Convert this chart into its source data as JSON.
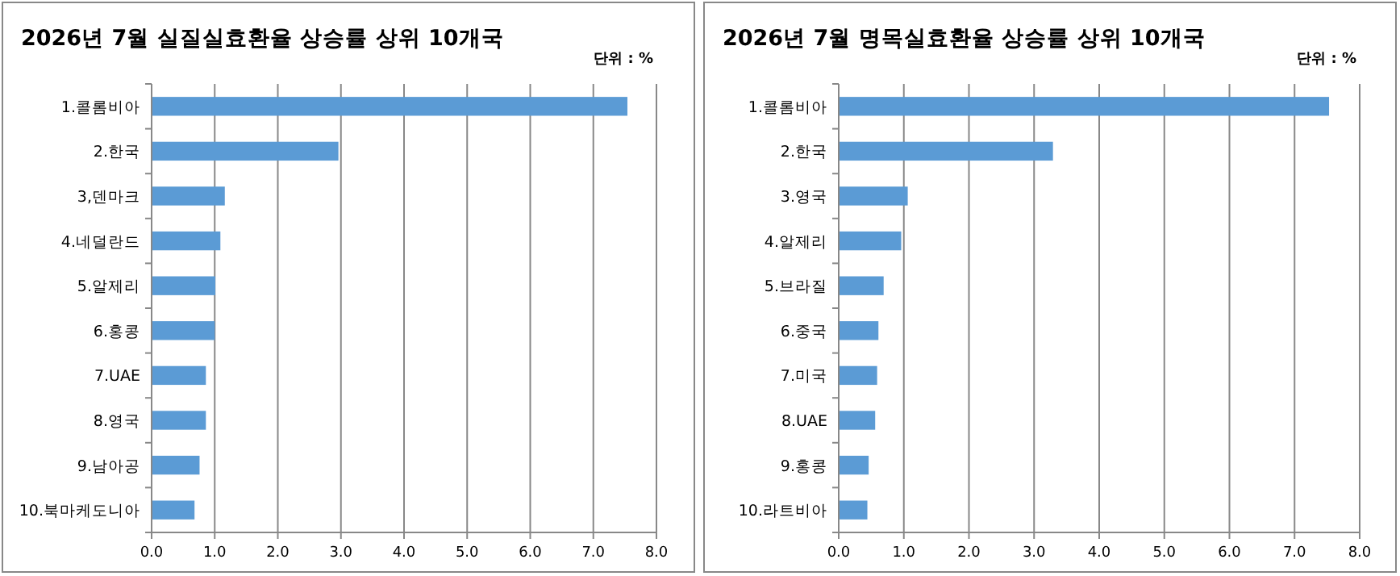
{
  "chart_data": [
    {
      "type": "bar",
      "orientation": "horizontal",
      "title": "2026년 7월 실질실효환율 상승률 상위 10개국",
      "annotations": [
        "단위 : %"
      ],
      "categories": [
        "1.콜롬비아",
        "2.한국",
        "3,덴마크",
        "4.네덜란드",
        "5.알제리",
        "6.홍콩",
        "7.UAE",
        "8.영국",
        "9.남아공",
        "10.북마케도니아"
      ],
      "values": [
        7.54,
        2.96,
        1.16,
        1.09,
        1.01,
        1.0,
        0.86,
        0.86,
        0.76,
        0.68
      ],
      "color": "#5b9bd5",
      "xlim": [
        0,
        8
      ],
      "xticks": [
        {
          "value": 0,
          "label": "0.0"
        },
        {
          "value": 1,
          "label": "1.0"
        },
        {
          "value": 2,
          "label": "2.0"
        },
        {
          "value": 3,
          "label": "3.0"
        },
        {
          "value": 4,
          "label": "4.0"
        },
        {
          "value": 5,
          "label": "5.0"
        },
        {
          "value": 6,
          "label": "6.0"
        },
        {
          "value": 7,
          "label": "7.0"
        },
        {
          "value": 8,
          "label": "8.0"
        }
      ],
      "grid": "x"
    },
    {
      "type": "bar",
      "orientation": "horizontal",
      "title": "2026년 7월 명목실효환율 상승률 상위 10개국",
      "annotations": [
        "단위 : %"
      ],
      "categories": [
        "1.콜롬비아",
        "2.한국",
        "3.영국",
        "4.알제리",
        "5.브라질",
        "6.중국",
        "7.미국",
        "8.UAE",
        "9.홍콩",
        "10.라트비아"
      ],
      "values": [
        7.53,
        3.29,
        1.06,
        0.96,
        0.69,
        0.61,
        0.59,
        0.56,
        0.46,
        0.44
      ],
      "color": "#5b9bd5",
      "xlim": [
        0,
        8
      ],
      "xticks": [
        {
          "value": 0,
          "label": "0.0"
        },
        {
          "value": 1,
          "label": "1.0"
        },
        {
          "value": 2,
          "label": "2.0"
        },
        {
          "value": 3,
          "label": "3.0"
        },
        {
          "value": 4,
          "label": "4.0"
        },
        {
          "value": 5,
          "label": "5.0"
        },
        {
          "value": 6,
          "label": "6.0"
        },
        {
          "value": 7,
          "label": "7.0"
        },
        {
          "value": 8,
          "label": "8.0"
        }
      ],
      "grid": "x"
    }
  ]
}
